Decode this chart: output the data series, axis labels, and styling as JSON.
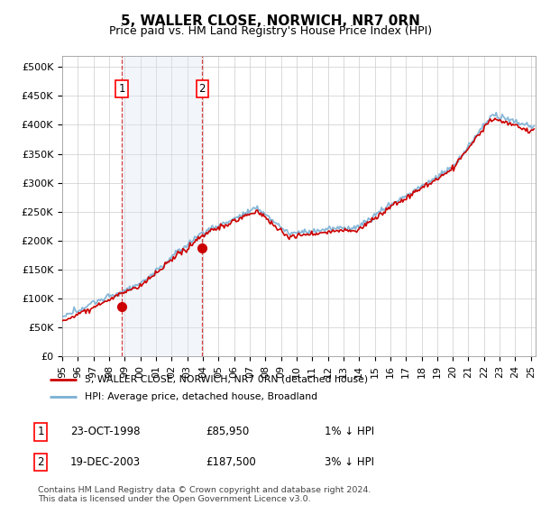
{
  "title": "5, WALLER CLOSE, NORWICH, NR7 0RN",
  "subtitle": "Price paid vs. HM Land Registry's House Price Index (HPI)",
  "ylabel_ticks": [
    "£0",
    "£50K",
    "£100K",
    "£150K",
    "£200K",
    "£250K",
    "£300K",
    "£350K",
    "£400K",
    "£450K",
    "£500K"
  ],
  "ytick_values": [
    0,
    50000,
    100000,
    150000,
    200000,
    250000,
    300000,
    350000,
    400000,
    450000,
    500000
  ],
  "xlim_start": 1995.0,
  "xlim_end": 2025.3,
  "ylim": [
    0,
    520000
  ],
  "hpi_color": "#7ab0d4",
  "price_color": "#cc0000",
  "sale1_date": 1998.81,
  "sale1_price": 85950,
  "sale2_date": 2003.96,
  "sale2_price": 187500,
  "legend_line1": "5, WALLER CLOSE, NORWICH, NR7 0RN (detached house)",
  "legend_line2": "HPI: Average price, detached house, Broadland",
  "table_row1_date": "23-OCT-1998",
  "table_row1_price": "£85,950",
  "table_row1_hpi": "1% ↓ HPI",
  "table_row2_date": "19-DEC-2003",
  "table_row2_price": "£187,500",
  "table_row2_hpi": "3% ↓ HPI",
  "footer": "Contains HM Land Registry data © Crown copyright and database right 2024.\nThis data is licensed under the Open Government Licence v3.0.",
  "bg_color": "#ffffff",
  "grid_color": "#cccccc",
  "shade_color": "#dce8f5"
}
